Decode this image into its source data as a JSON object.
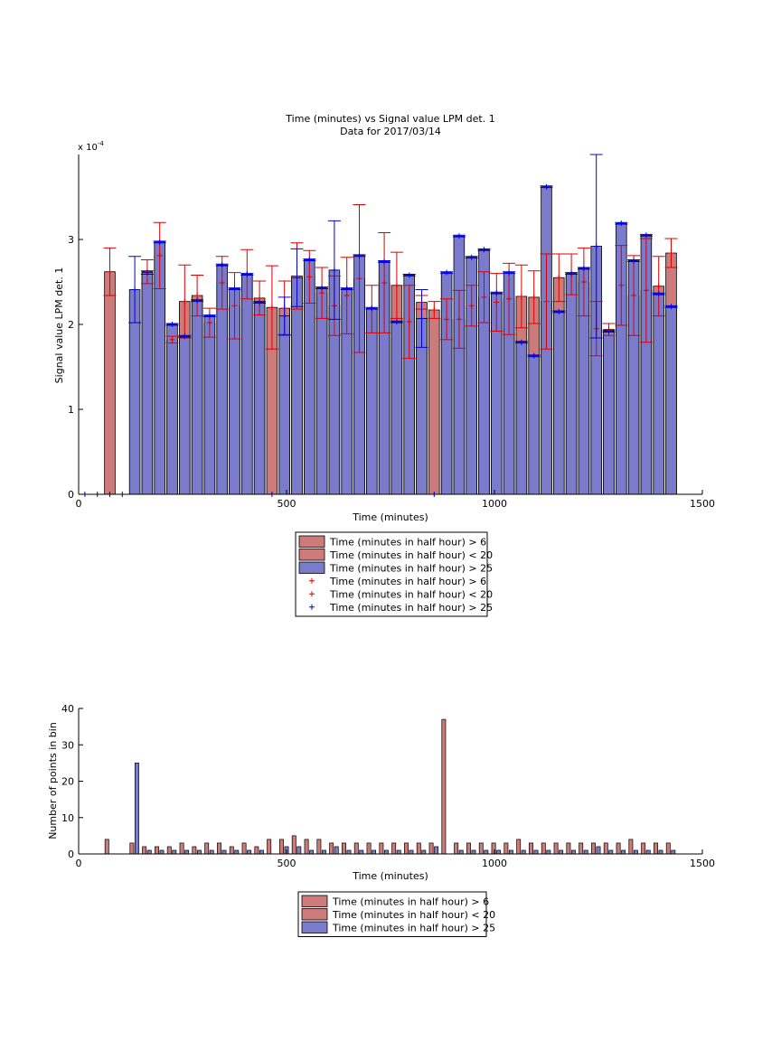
{
  "colors": {
    "red_fill": "#cc7a7a",
    "blue_fill": "#7b7bcc",
    "red_marker": "#dd0000",
    "blue_marker": "#0000dd",
    "axis": "#000000"
  },
  "chart_data": [
    {
      "type": "bar",
      "title": "Time (minutes) vs Signal value LPM det. 1",
      "subtitle": "Data for 2017/03/14",
      "xlabel": "Time (minutes)",
      "ylabel": "Signal value LPM det. 1",
      "y_exponent_label": "x 10",
      "y_exponent_power": "-4",
      "xlim": [
        0,
        1500
      ],
      "ylim": [
        0,
        4
      ],
      "xticks": [
        0,
        500,
        1000,
        1500
      ],
      "yticks": [
        0,
        1,
        2,
        3
      ],
      "grid": false,
      "legend_position": "below",
      "legend": [
        {
          "label": "Time (minutes in half hour) > 6",
          "kind": "patch",
          "color": "#cc7a7a"
        },
        {
          "label": "Time (minutes in half hour) < 20",
          "kind": "patch",
          "color": "#cc7a7a"
        },
        {
          "label": "Time (minutes in half hour) > 25",
          "kind": "patch",
          "color": "#7b7bcc"
        },
        {
          "label": "Time (minutes in half hour) > 6",
          "kind": "marker",
          "color": "#dd0000"
        },
        {
          "label": "Time (minutes in half hour) < 20",
          "kind": "marker",
          "color": "#dd0000"
        },
        {
          "label": "Time (minutes in half hour) > 25",
          "kind": "marker",
          "color": "#0000dd"
        }
      ],
      "series": [
        {
          "group": "red",
          "x": [
            75,
            165,
            195,
            225,
            255,
            285,
            315,
            345,
            375,
            405,
            435,
            465,
            495,
            525,
            555,
            585,
            615,
            645,
            675,
            705,
            735,
            765,
            795,
            825,
            855,
            885,
            915,
            945,
            975,
            1005,
            1035,
            1065,
            1095,
            1125,
            1155,
            1185,
            1215,
            1245,
            1275,
            1305,
            1335,
            1365,
            1395,
            1425
          ],
          "values": [
            2.62,
            2.62,
            2.81,
            1.82,
            2.27,
            2.34,
            2.02,
            2.49,
            2.22,
            2.59,
            2.31,
            2.2,
            2.19,
            2.57,
            2.56,
            2.37,
            2.22,
            2.34,
            2.54,
            2.18,
            2.49,
            2.46,
            2.03,
            2.26,
            2.17,
            2.06,
            2.06,
            2.22,
            2.32,
            2.26,
            2.3,
            2.33,
            2.32,
            2.27,
            2.55,
            2.59,
            2.5,
            1.95,
            1.94,
            2.46,
            2.34,
            2.4,
            2.45,
            2.84
          ],
          "err": [
            0.28,
            0.14,
            0.39,
            0.04,
            0.43,
            0.24,
            0.17,
            0.31,
            0.39,
            0.29,
            0.2,
            0.49,
            0.32,
            0.39,
            0.31,
            0.3,
            0.35,
            0.45,
            0.87,
            0.28,
            0.59,
            0.39,
            0.43,
            0.08,
            0.1,
            0.24,
            0.34,
            0.24,
            0.3,
            0.34,
            0.42,
            0.37,
            0.31,
            0.56,
            0.28,
            0.24,
            0.4,
            0.32,
            0.07,
            0.47,
            0.47,
            0.61,
            0.35,
            0.17
          ]
        },
        {
          "group": "blue",
          "x": [
            135,
            165,
            195,
            225,
            255,
            285,
            315,
            345,
            375,
            405,
            435,
            465,
            495,
            525,
            555,
            585,
            615,
            645,
            675,
            705,
            735,
            765,
            795,
            825,
            855,
            885,
            915,
            945,
            975,
            1005,
            1035,
            1065,
            1095,
            1125,
            1155,
            1185,
            1215,
            1245,
            1275,
            1305,
            1335,
            1365,
            1395,
            1425
          ],
          "values": [
            2.41,
            2.61,
            2.97,
            2.0,
            1.86,
            2.28,
            2.1,
            2.7,
            2.42,
            2.59,
            2.26,
            0,
            2.1,
            2.55,
            2.76,
            2.43,
            2.64,
            2.42,
            2.81,
            2.19,
            2.74,
            2.03,
            2.58,
            2.07,
            0,
            2.61,
            3.04,
            2.79,
            2.88,
            2.37,
            2.61,
            1.79,
            1.63,
            3.62,
            2.15,
            2.6,
            2.66,
            2.92,
            1.92,
            3.19,
            2.75,
            3.05,
            2.36,
            2.21
          ],
          "err": [
            0.39,
            0.02,
            0.01,
            0.01,
            0.01,
            0.01,
            0.01,
            0.01,
            0.01,
            0.01,
            0.01,
            0,
            0.22,
            0.34,
            0.01,
            0.01,
            0.58,
            0.01,
            0.01,
            0.01,
            0.01,
            0.01,
            0.01,
            0.34,
            0,
            0.01,
            0.01,
            0.01,
            0.01,
            0.01,
            0.01,
            0.01,
            0.01,
            0.01,
            0.01,
            0.01,
            0.01,
            1.08,
            0.01,
            0.01,
            0.01,
            0.01,
            0.01,
            0.01
          ]
        }
      ],
      "zero_markers_x": [
        15,
        45,
        75,
        105,
        465,
        855
      ]
    },
    {
      "type": "bar",
      "title": "",
      "xlabel": "Time (minutes)",
      "ylabel": "Number of points in bin",
      "xlim": [
        0,
        1500
      ],
      "ylim": [
        0,
        40
      ],
      "xticks": [
        0,
        500,
        1000,
        1500
      ],
      "yticks": [
        0,
        10,
        20,
        30,
        40
      ],
      "grid": false,
      "legend_position": "below",
      "legend": [
        {
          "label": "Time (minutes in half hour) > 6",
          "kind": "patch",
          "color": "#cc7a7a"
        },
        {
          "label": "Time (minutes in half hour) < 20",
          "kind": "patch",
          "color": "#cc7a7a"
        },
        {
          "label": "Time (minutes in half hour) > 25",
          "kind": "patch",
          "color": "#7b7bcc"
        }
      ],
      "series": [
        {
          "group": "red",
          "x": [
            68,
            128,
            158,
            188,
            218,
            248,
            278,
            308,
            338,
            368,
            398,
            428,
            458,
            488,
            518,
            548,
            578,
            608,
            638,
            668,
            698,
            728,
            758,
            788,
            818,
            848,
            878,
            908,
            938,
            968,
            998,
            1028,
            1058,
            1088,
            1118,
            1148,
            1178,
            1208,
            1238,
            1268,
            1298,
            1328,
            1358,
            1388,
            1418
          ],
          "values": [
            4,
            3,
            2,
            2,
            2,
            3,
            2,
            3,
            3,
            2,
            3,
            2,
            4,
            4,
            5,
            4,
            4,
            3,
            3,
            3,
            3,
            3,
            3,
            3,
            3,
            3,
            37,
            3,
            3,
            3,
            3,
            3,
            4,
            3,
            3,
            3,
            3,
            3,
            3,
            3,
            3,
            4,
            3,
            3,
            3
          ]
        },
        {
          "group": "blue",
          "x": [
            140,
            170,
            200,
            230,
            260,
            290,
            320,
            350,
            380,
            410,
            440,
            500,
            530,
            560,
            590,
            620,
            650,
            680,
            710,
            740,
            770,
            800,
            830,
            860,
            920,
            950,
            980,
            1010,
            1040,
            1070,
            1100,
            1130,
            1160,
            1190,
            1220,
            1250,
            1280,
            1310,
            1340,
            1370,
            1400,
            1430
          ],
          "values": [
            25,
            1,
            1,
            1,
            1,
            1,
            1,
            1,
            1,
            1,
            1,
            2,
            2,
            1,
            1,
            2,
            1,
            1,
            1,
            1,
            1,
            1,
            1,
            2,
            1,
            1,
            1,
            1,
            1,
            1,
            1,
            1,
            1,
            1,
            1,
            2,
            1,
            1,
            1,
            1,
            1,
            1
          ]
        }
      ]
    }
  ]
}
